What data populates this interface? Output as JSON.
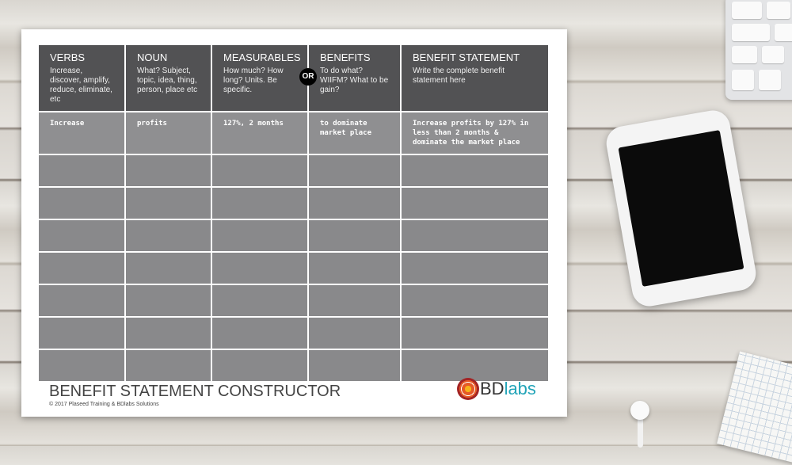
{
  "worksheet": {
    "columns": [
      {
        "title": "VERBS",
        "desc": "Increase, discover, amplify, reduce, eliminate, etc"
      },
      {
        "title": "NOUN",
        "desc": "What? Subject, topic, idea, thing, person, place etc"
      },
      {
        "title": "MEASURABLES",
        "desc": "How much? How long? Units. Be specific."
      },
      {
        "title": "BENEFITS",
        "desc": "To do what? WIIFM? What to be gain?"
      },
      {
        "title": "BENEFIT STATEMENT",
        "desc": "Write the complete benefit statement here"
      }
    ],
    "or_badge": "OR",
    "example_row": [
      "Increase",
      "profits",
      "127%, 2 months",
      "to dominate market place",
      "Increase profits by 127% in less than 2 months & dominate the market place"
    ],
    "title": "BENEFIT STATEMENT CONSTRUCTOR",
    "copyright": "© 2017 Plaseed Training & BDlabs Solutions",
    "logo": {
      "bd": "BD",
      "labs": "labs"
    }
  },
  "colors": {
    "header": "#525254",
    "cell": "#8d8d8f",
    "logo_accent": "#22a4b8"
  }
}
